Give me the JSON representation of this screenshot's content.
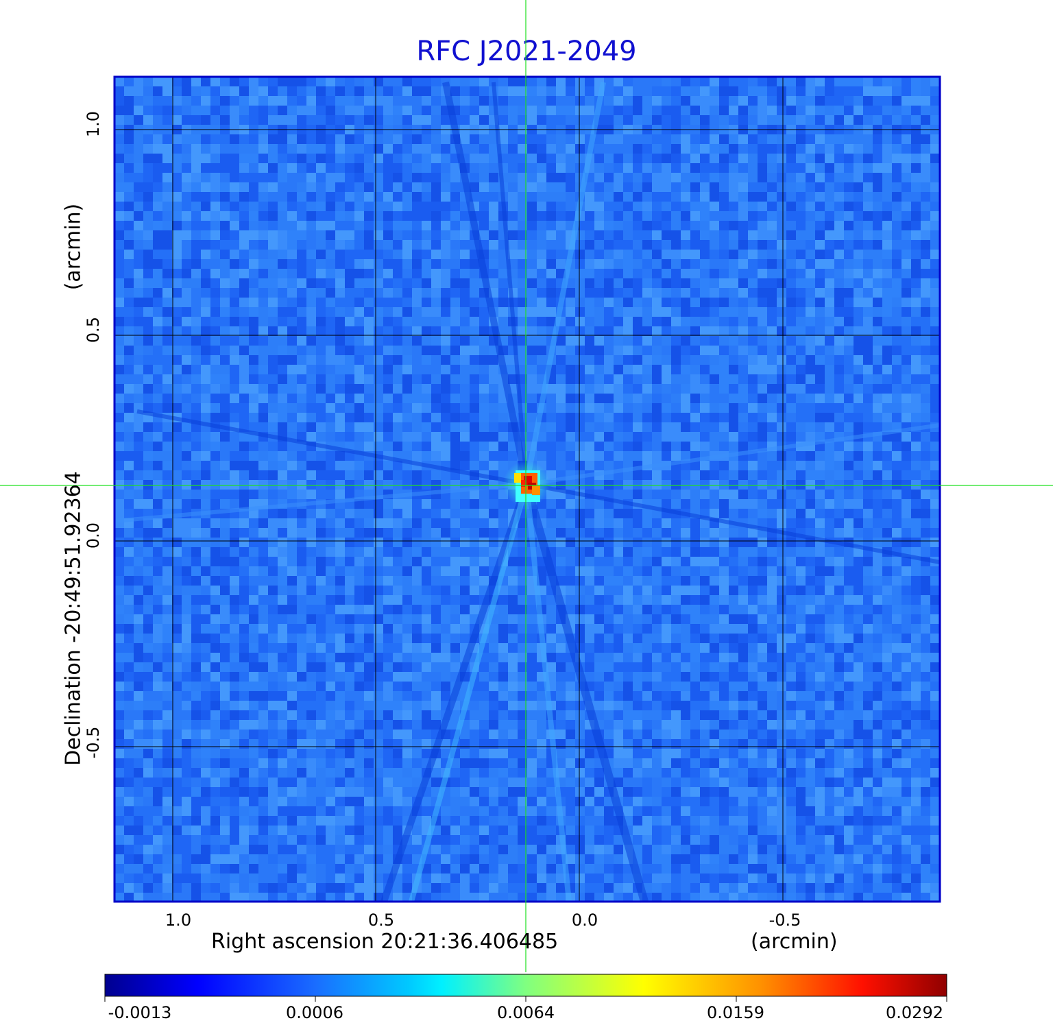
{
  "title": "RFC J2021-2049",
  "x_axis": {
    "label": "Right ascension  20:21:36.406485",
    "unit": "(arcmin)",
    "ticks": [
      "1.0",
      "0.5",
      "0.0",
      "-0.5"
    ]
  },
  "y_axis": {
    "label": "Declination  -20:49:51.92364",
    "unit": "(arcmin)",
    "ticks": [
      "1.0",
      "0.5",
      "0.0",
      "-0.5"
    ]
  },
  "colorbar": {
    "ticks": [
      "-0.0013",
      "0.0006",
      "0.0064",
      "0.0159",
      "0.0292"
    ]
  },
  "colors": {
    "title": "#1010d0",
    "frame": "#0000c8",
    "crosshair": "#20e020",
    "grid": "#000000"
  }
}
